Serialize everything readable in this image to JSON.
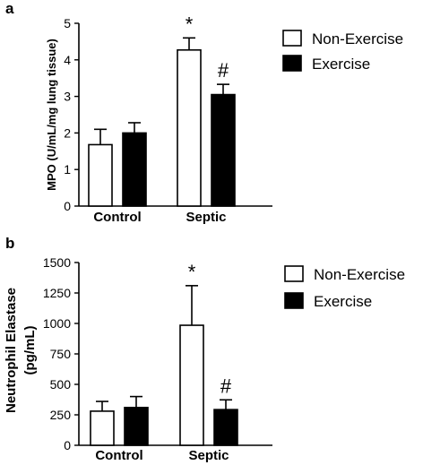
{
  "chart_data": [
    {
      "type": "bar",
      "panel_label": "a",
      "ylabel": "MPO (U/mL/mg lung tissue)",
      "xlabel": "",
      "categories": [
        "Control",
        "Septic"
      ],
      "ylim": [
        0,
        5
      ],
      "yticks": [
        0,
        1,
        2,
        3,
        4,
        5
      ],
      "series": [
        {
          "name": "Non-Exercise",
          "values": [
            1.68,
            4.27
          ],
          "errors": [
            0.42,
            0.33
          ],
          "fill": "#ffffff"
        },
        {
          "name": "Exercise",
          "values": [
            2.0,
            3.05
          ],
          "errors": [
            0.28,
            0.28
          ],
          "fill": "#000000"
        }
      ],
      "annotations": [
        {
          "text": "*",
          "category": 1,
          "series": 0
        },
        {
          "text": "#",
          "category": 1,
          "series": 1
        }
      ],
      "legend": "top-right",
      "grid": false
    },
    {
      "type": "bar",
      "panel_label": "b",
      "ylabel": [
        "Neutrophil Elastase",
        "(pg/mL)"
      ],
      "xlabel": "",
      "categories": [
        "Control",
        "Septic"
      ],
      "ylim": [
        0,
        1500
      ],
      "yticks": [
        0,
        250,
        500,
        750,
        1000,
        1250,
        1500
      ],
      "series": [
        {
          "name": "Non-Exercise",
          "values": [
            280,
            985
          ],
          "errors": [
            80,
            325
          ],
          "fill": "#ffffff"
        },
        {
          "name": "Exercise",
          "values": [
            310,
            293
          ],
          "errors": [
            90,
            80
          ],
          "fill": "#000000"
        }
      ],
      "annotations": [
        {
          "text": "*",
          "category": 1,
          "series": 0
        },
        {
          "text": "#",
          "category": 1,
          "series": 1
        }
      ],
      "legend": "top-right",
      "grid": false
    }
  ]
}
